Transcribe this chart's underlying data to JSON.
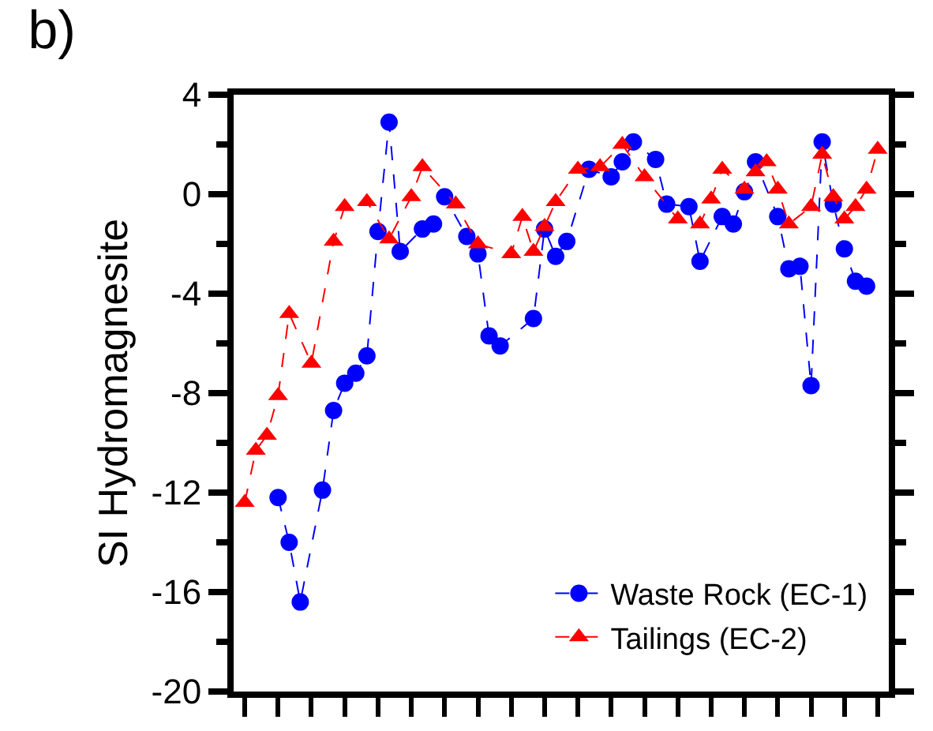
{
  "chart_data": {
    "type": "line",
    "title": "b)",
    "ylabel": "SI Hydromagnesite",
    "categories": [
      null,
      null,
      null,
      null,
      null,
      null,
      null,
      null,
      null,
      null,
      null,
      null,
      null,
      null,
      null,
      null,
      null,
      null,
      null,
      null,
      null,
      null,
      null,
      null,
      null,
      null,
      null,
      null,
      null,
      null,
      null,
      null,
      null,
      null,
      null,
      null,
      null,
      null,
      null,
      null,
      null,
      null,
      null,
      null,
      null,
      null,
      null,
      null,
      null,
      null,
      null,
      null,
      null,
      null,
      null,
      null,
      null,
      null
    ],
    "series": [
      {
        "name": "Waste Rock (EC-1)",
        "color": "#0000ff",
        "marker": "circle",
        "values": [
          null,
          null,
          null,
          -12.2,
          -14.0,
          -16.4,
          null,
          -11.9,
          -8.7,
          -7.6,
          -7.2,
          -6.5,
          -1.5,
          2.9,
          -2.3,
          null,
          -1.4,
          -1.2,
          -0.1,
          null,
          -1.7,
          -2.4,
          -5.7,
          -6.1,
          null,
          null,
          -5.0,
          -1.4,
          -2.5,
          -1.9,
          null,
          1.0,
          null,
          0.7,
          1.3,
          2.1,
          null,
          1.4,
          -0.4,
          null,
          -0.5,
          -2.7,
          null,
          -0.9,
          -1.2,
          0.1,
          1.3,
          null,
          -0.9,
          -3.0,
          -2.9,
          -7.7,
          2.1,
          -0.4,
          -2.2,
          -3.5,
          -3.7,
          null
        ]
      },
      {
        "name": "Tailings (EC-2)",
        "color": "#ff0000",
        "marker": "triangle",
        "values": [
          -12.4,
          -10.3,
          -9.7,
          -8.1,
          -4.8,
          null,
          -6.8,
          null,
          -1.9,
          -0.5,
          null,
          -0.3,
          null,
          -1.8,
          null,
          -0.1,
          1.1,
          null,
          null,
          -0.4,
          null,
          -2.0,
          null,
          null,
          -2.4,
          -0.9,
          -2.3,
          -1.3,
          -0.3,
          null,
          1.0,
          null,
          1.1,
          null,
          2.0,
          null,
          0.7,
          null,
          null,
          -1.0,
          null,
          -1.2,
          -0.2,
          1.0,
          null,
          0.2,
          0.9,
          1.3,
          0.2,
          -1.2,
          null,
          -0.5,
          1.6,
          -0.1,
          -1.0,
          -0.5,
          0.2,
          1.8
        ]
      }
    ],
    "line_style": "dashed",
    "ylim": [
      -20,
      4
    ],
    "yticks": [
      -20,
      -16,
      -12,
      -8,
      -4,
      0,
      4
    ],
    "legend": "bottom right"
  }
}
